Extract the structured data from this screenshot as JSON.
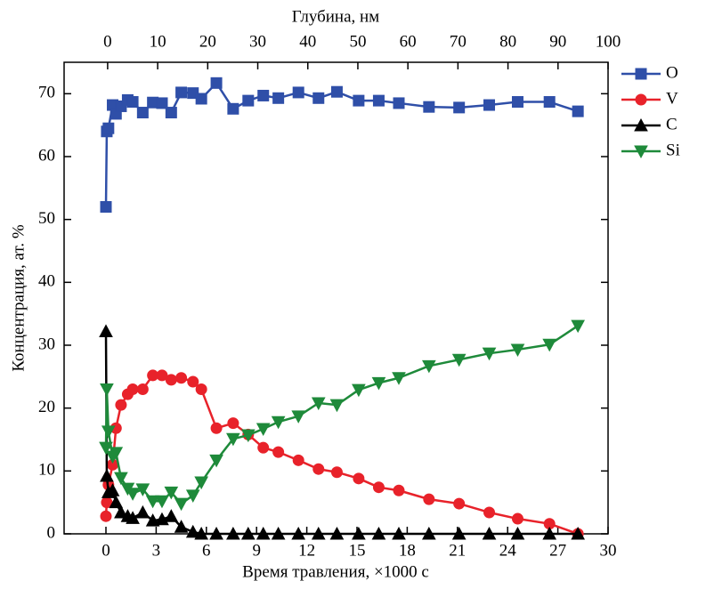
{
  "chart_data": {
    "type": "line",
    "xlabel": "Время травления, ×1000 с",
    "ylabel": "Концентрация, ат. %",
    "x2label": "Глубина, нм",
    "xlim": [
      -2.5,
      30
    ],
    "xticks": [
      0,
      3,
      6,
      9,
      12,
      15,
      18,
      21,
      24,
      27,
      30
    ],
    "x2lim": [
      -8.7,
      100
    ],
    "x2ticks": [
      0,
      10,
      20,
      30,
      40,
      50,
      60,
      70,
      80,
      90,
      100
    ],
    "ylim": [
      0,
      75
    ],
    "yticks": [
      0,
      10,
      20,
      30,
      40,
      50,
      60,
      70
    ],
    "legend": "outside-right",
    "x": [
      0,
      0.05,
      0.15,
      0.4,
      0.6,
      0.9,
      1.3,
      1.6,
      2.2,
      2.8,
      3.35,
      3.9,
      4.5,
      5.2,
      5.7,
      6.6,
      7.6,
      8.5,
      9.4,
      10.3,
      11.5,
      12.7,
      13.8,
      15.1,
      16.3,
      17.5,
      19.3,
      21.1,
      22.9,
      24.6,
      26.5,
      28.2
    ],
    "series": [
      {
        "name": "O",
        "color": "#2f4fa8",
        "marker": "square",
        "values": [
          52,
          64,
          64.5,
          68.2,
          66.8,
          68,
          69,
          68.7,
          67,
          68.6,
          68.5,
          67,
          70.2,
          70.1,
          69.2,
          71.7,
          67.6,
          68.9,
          69.7,
          69.3,
          70.2,
          69.3,
          70.3,
          68.9,
          68.9,
          68.5,
          67.9,
          67.8,
          68.2,
          68.7,
          68.7,
          67.2
        ]
      },
      {
        "name": "V",
        "color": "#e8222a",
        "marker": "circle",
        "values": [
          2.8,
          5,
          7.8,
          11,
          16.8,
          20.5,
          22.2,
          23,
          23,
          25.2,
          25.2,
          24.5,
          24.8,
          24.2,
          23,
          16.8,
          17.6,
          15.8,
          13.7,
          13,
          11.7,
          10.3,
          9.8,
          8.8,
          7.4,
          6.9,
          5.5,
          4.8,
          3.4,
          2.4,
          1.6,
          0
        ]
      },
      {
        "name": "C",
        "color": "#000000",
        "marker": "triangle-up",
        "values": [
          32.2,
          9.2,
          6.6,
          6.9,
          5,
          3.4,
          2.8,
          2.5,
          3.4,
          2.1,
          2.3,
          2.8,
          1.1,
          0.3,
          0,
          0,
          0,
          0,
          0,
          0,
          0,
          0,
          0,
          0,
          0,
          0,
          0,
          0,
          0,
          0,
          0,
          0
        ]
      },
      {
        "name": "Si",
        "color": "#1e8a3a",
        "marker": "triangle-down",
        "values": [
          13.7,
          23,
          16.3,
          12.3,
          12.9,
          8.9,
          7.2,
          6.4,
          7.1,
          5.2,
          5.2,
          6.6,
          4.8,
          6.1,
          8.2,
          11.7,
          15.1,
          15.7,
          16.7,
          17.8,
          18.7,
          20.8,
          20.5,
          22.9,
          24,
          24.8,
          26.7,
          27.7,
          28.7,
          29.3,
          30.1,
          33.1
        ]
      }
    ]
  }
}
